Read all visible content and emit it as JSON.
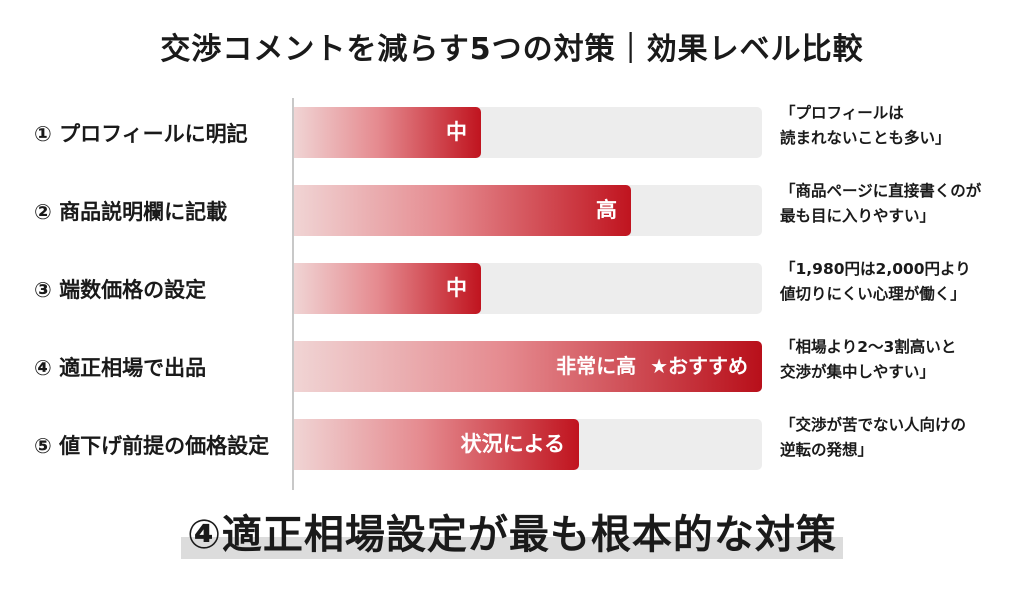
{
  "chart_data": {
    "type": "bar",
    "orientation": "horizontal",
    "title": "交渉コメントを減らす5つの対策｜効果レベル比較",
    "categories": [
      "① プロフィールに明記",
      "② 商品説明欄に記載",
      "③ 端数価格の設定",
      "④ 適正相場で出品",
      "⑤ 値下げ前提の価格設定"
    ],
    "values": [
      0.4,
      0.72,
      0.4,
      1.0,
      0.61
    ],
    "value_scale": "relative effect level (0–1)",
    "data_labels": [
      "中",
      "高",
      "中",
      "非常に高  ★おすすめ",
      "状況による"
    ],
    "annotations": [
      [
        "「プロフィールは",
        "読まれないことも多い」"
      ],
      [
        "「商品ページに直接書くのが",
        "最も目に入りやすい」"
      ],
      [
        "「1,980円は2,000円より",
        "値切りにくい心理が働く」"
      ],
      [
        "「相場より2〜3割高いと",
        "交渉が集中しやすい」"
      ],
      [
        "「交渉が苦でない人向けの",
        "逆転の発想」"
      ]
    ],
    "bar_colors": {
      "start": "#f0d4d4",
      "end": "#c0141f",
      "highlight_end": "#b80f1a"
    },
    "track_color": "#ededed",
    "grid": false,
    "legend": "none"
  },
  "conclusion": "④適正相場設定が最も根本的な対策"
}
